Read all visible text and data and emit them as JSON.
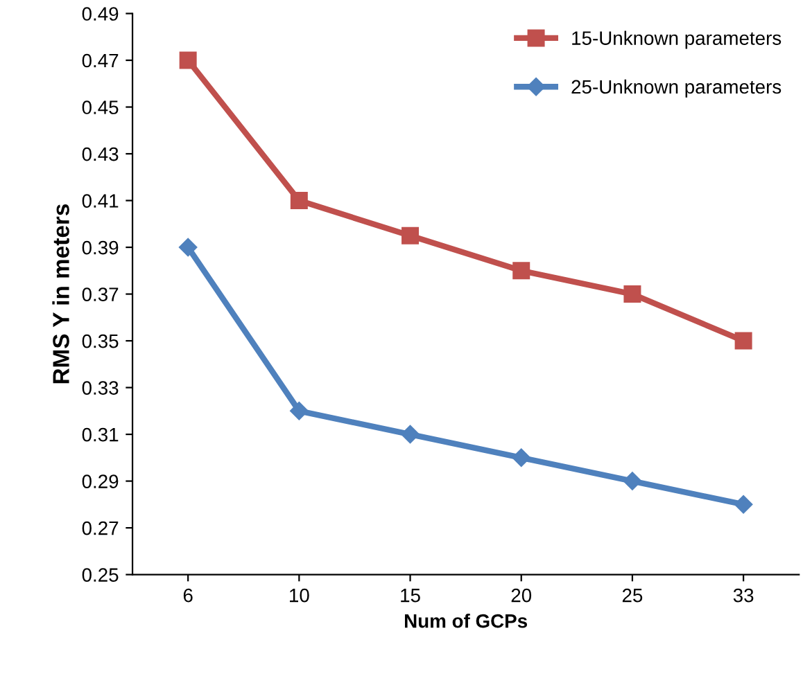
{
  "chart_data": {
    "type": "line",
    "xlabel": "Num of GCPs",
    "ylabel": "RMS Y in meters",
    "categories": [
      "6",
      "10",
      "15",
      "20",
      "25",
      "33"
    ],
    "series": [
      {
        "name": "15-Unknown parameters",
        "color": "#c0504d",
        "marker": "square",
        "values": [
          0.47,
          0.41,
          0.395,
          0.38,
          0.37,
          0.35
        ]
      },
      {
        "name": "25-Unknown parameters",
        "color": "#4f81bd",
        "marker": "diamond",
        "values": [
          0.39,
          0.32,
          0.31,
          0.3,
          0.29,
          0.28
        ]
      }
    ],
    "ylim": [
      0.25,
      0.49
    ],
    "yticks": [
      0.25,
      0.27,
      0.29,
      0.31,
      0.33,
      0.35,
      0.37,
      0.39,
      0.41,
      0.43,
      0.45,
      0.47,
      0.49
    ],
    "grid": false,
    "legend": "top right",
    "line_style": "solid"
  }
}
